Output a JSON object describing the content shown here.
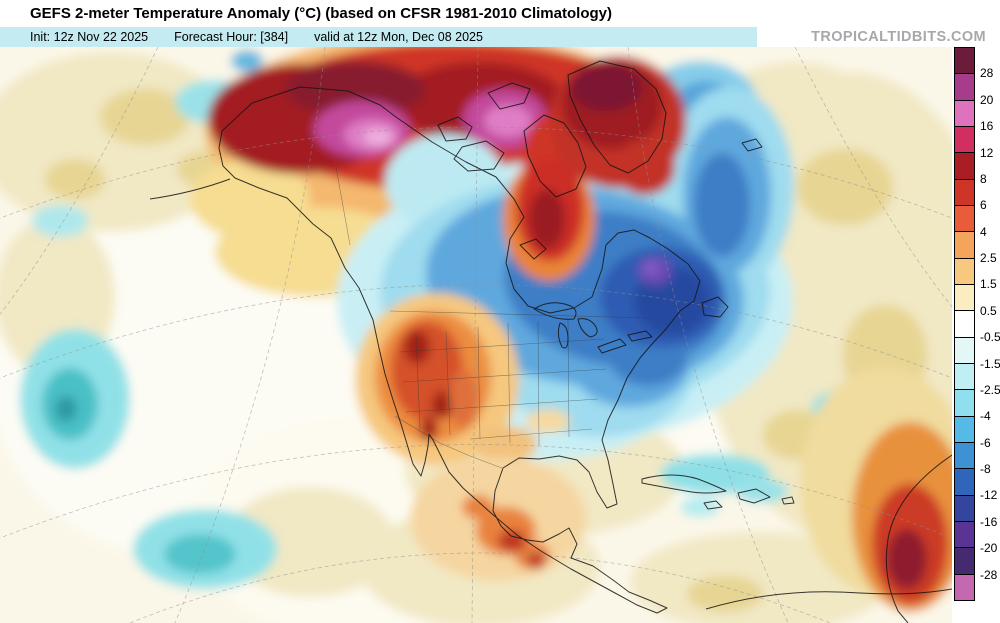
{
  "header": {
    "title": "GEFS 2-meter Temperature Anomaly (°C) (based on CFSR 1981-2010 Climatology)",
    "init": "Init: 12z Nov 22 2025",
    "forecast_hour": "Forecast Hour: [384]",
    "valid": "valid at 12z Mon, Dec 08 2025",
    "watermark": "TROPICALTIDBITS.COM"
  },
  "colorbar": {
    "unit": "°C",
    "boundary_labels": [
      "28",
      "20",
      "16",
      "12",
      "8",
      "6",
      "4",
      "2.5",
      "1.5",
      "0.5",
      "-0.5",
      "-1.5",
      "-2.5",
      "-4",
      "-6",
      "-8",
      "-12",
      "-16",
      "-20",
      "-28"
    ],
    "segment_colors": [
      "#6b1c3a",
      "#a83c8c",
      "#df72bd",
      "#d12f5f",
      "#a81e24",
      "#cf3527",
      "#e85c3a",
      "#f5a45c",
      "#f8c87e",
      "#faeec0",
      "#ffffff",
      "#e4f7f7",
      "#bfeef3",
      "#8fdfee",
      "#55bae5",
      "#3c92d2",
      "#2f66ba",
      "#34459e",
      "#5a3494",
      "#452a70",
      "#c468b2"
    ]
  },
  "map": {
    "type": "temperature-anomaly-map",
    "region": "North America",
    "features": [
      {
        "area": "Alaska and western Arctic",
        "anomaly_c": "+8 to +28"
      },
      {
        "area": "Greenland",
        "anomaly_c": "+8 to +20"
      },
      {
        "area": "Central Canada / Hudson Bay / Quebec-Labrador",
        "anomaly_c": "-6 to -16"
      },
      {
        "area": "Great Lakes and Northeast US",
        "anomaly_c": "-2 to -8"
      },
      {
        "area": "Foxe Basin warm pocket",
        "anomaly_c": "+6 to +12"
      },
      {
        "area": "Great Basin / western US",
        "anomaly_c": "+4 to +12"
      },
      {
        "area": "Central Mexico",
        "anomaly_c": "+2 to +8"
      },
      {
        "area": "Northwest Africa (right edge)",
        "anomaly_c": "+4 to +12"
      },
      {
        "area": "Eastern Pacific patches",
        "anomaly_c": "-1 to -4"
      },
      {
        "area": "Central Atlantic",
        "anomaly_c": "0 to +2"
      }
    ]
  }
}
